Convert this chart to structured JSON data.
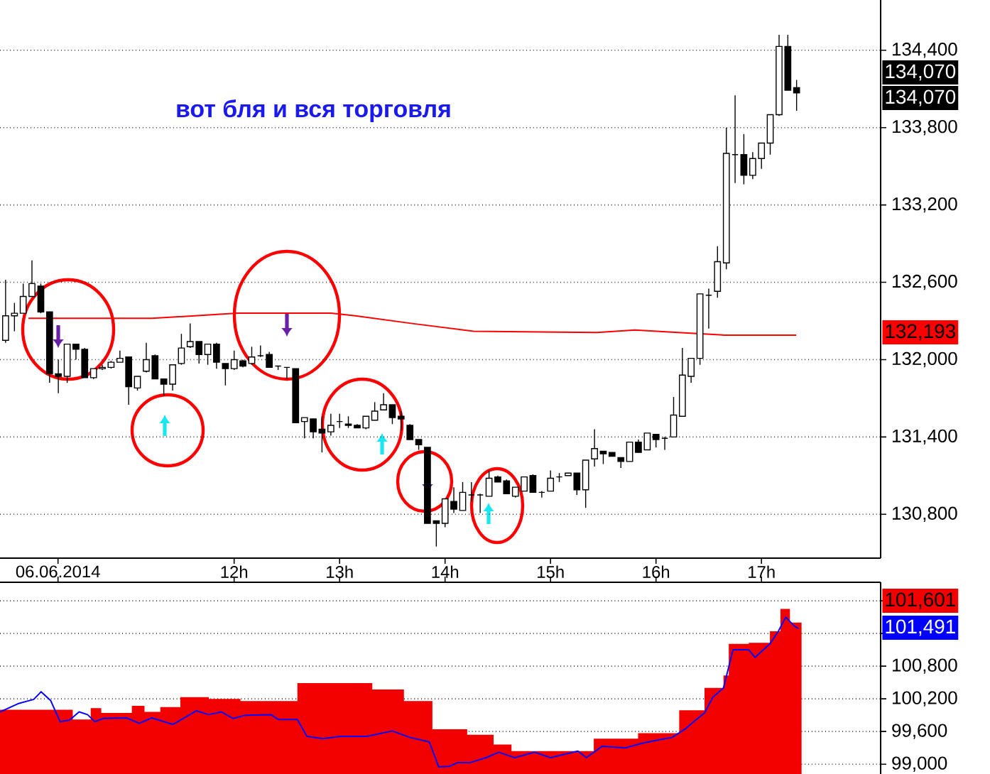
{
  "chart_data": [
    {
      "type": "candlestick",
      "x": [
        9.833,
        9.917,
        10,
        10.083,
        10.167,
        10.25,
        10.333,
        10.417,
        10.5,
        10.583,
        10.667,
        10.75,
        10.833,
        10.917,
        11,
        11.083,
        11.167,
        11.25,
        11.333,
        11.417,
        11.5,
        11.583,
        11.667,
        11.75,
        11.833,
        11.917,
        12,
        12.083,
        12.167,
        12.25,
        12.333,
        12.417,
        12.5,
        12.583,
        12.667,
        12.75,
        12.833,
        12.917,
        13,
        13.083,
        13.167,
        13.25,
        13.333,
        13.417,
        13.5,
        13.583,
        13.667,
        13.75,
        13.833,
        13.917,
        14,
        14.083,
        14.167,
        14.25,
        14.333,
        14.417,
        14.5,
        14.583,
        14.667,
        14.75,
        14.833,
        14.917,
        15,
        15.083,
        15.167,
        15.25,
        15.333,
        15.417,
        15.5,
        15.583,
        15.667,
        15.75,
        15.833,
        15.917,
        16,
        16.083,
        16.167,
        16.25,
        16.333,
        16.417,
        16.5,
        16.583,
        16.667,
        16.75,
        16.833,
        16.917,
        17,
        17.083,
        17.167,
        17.25,
        17.333
      ],
      "ohlc": [
        [
          132150,
          132620,
          132130,
          132340
        ],
        [
          132340,
          132440,
          132220,
          132360
        ],
        [
          132360,
          132590,
          132360,
          132490
        ],
        [
          132490,
          132770,
          132490,
          132590
        ],
        [
          132570,
          132590,
          132360,
          132370
        ],
        [
          132370,
          132370,
          131820,
          131890
        ],
        [
          131890,
          132000,
          131740,
          131870
        ],
        [
          131870,
          132120,
          131820,
          132120
        ],
        [
          132120,
          132120,
          132000,
          132080
        ],
        [
          132080,
          132090,
          131860,
          131860
        ],
        [
          131860,
          131930,
          131850,
          131930
        ],
        [
          131930,
          131960,
          131920,
          131940
        ],
        [
          131940,
          131990,
          131930,
          131980
        ],
        [
          131980,
          132070,
          131980,
          132010
        ],
        [
          132020,
          132020,
          131650,
          131790
        ],
        [
          131780,
          131870,
          131760,
          131870
        ],
        [
          131910,
          132130,
          131900,
          132000
        ],
        [
          132030,
          132040,
          131850,
          131850
        ],
        [
          131850,
          131850,
          131720,
          131810
        ],
        [
          131810,
          131960,
          131760,
          131960
        ],
        [
          131970,
          132200,
          131960,
          132090
        ],
        [
          132100,
          132280,
          132090,
          132140
        ],
        [
          132140,
          132140,
          131970,
          132040
        ],
        [
          132040,
          132120,
          131960,
          132120
        ],
        [
          132120,
          132130,
          131930,
          131980
        ],
        [
          131970,
          131970,
          131800,
          131930
        ],
        [
          131930,
          132070,
          131920,
          132000
        ],
        [
          131990,
          132000,
          131940,
          131950
        ],
        [
          131970,
          132100,
          131960,
          132020
        ],
        [
          132030,
          132110,
          132020,
          132030
        ],
        [
          132040,
          132060,
          131940,
          131940
        ],
        [
          131950,
          131950,
          131920,
          131950
        ],
        [
          131940,
          131940,
          131850,
          131940
        ],
        [
          131930,
          131930,
          131510,
          131510
        ],
        [
          131520,
          131550,
          131390,
          131550
        ],
        [
          131540,
          131540,
          131390,
          131440
        ],
        [
          131460,
          131560,
          131280,
          131430
        ],
        [
          131440,
          131580,
          131410,
          131490
        ],
        [
          131520,
          131580,
          131470,
          131520
        ],
        [
          131500,
          131560,
          131470,
          131490
        ],
        [
          131490,
          131500,
          131470,
          131470
        ],
        [
          131470,
          131560,
          131460,
          131560
        ],
        [
          131530,
          131670,
          131530,
          131600
        ],
        [
          131610,
          131740,
          131610,
          131650
        ],
        [
          131650,
          131650,
          131500,
          131550
        ],
        [
          131560,
          131600,
          131450,
          131540
        ],
        [
          131490,
          131500,
          131380,
          131380
        ],
        [
          131380,
          131380,
          131300,
          131340
        ],
        [
          131320,
          131320,
          130730,
          130730
        ],
        [
          130750,
          130750,
          130550,
          130730
        ],
        [
          130730,
          130920,
          130700,
          130920
        ],
        [
          130900,
          131010,
          130810,
          130840
        ],
        [
          130830,
          131050,
          130830,
          130970
        ],
        [
          130950,
          131050,
          130900,
          130950
        ],
        [
          130950,
          130960,
          130810,
          130950
        ],
        [
          130940,
          131140,
          130940,
          131080
        ],
        [
          131090,
          131100,
          131050,
          131050
        ],
        [
          131060,
          131070,
          130960,
          130960
        ],
        [
          130940,
          131010,
          130930,
          131010
        ],
        [
          130980,
          131090,
          130980,
          131090
        ],
        [
          131100,
          131110,
          130970,
          130970
        ],
        [
          130970,
          130980,
          130930,
          130970
        ],
        [
          130980,
          131140,
          130980,
          131080
        ],
        [
          131090,
          131120,
          131050,
          131090
        ],
        [
          131100,
          131120,
          131100,
          131120
        ],
        [
          131120,
          131120,
          130950,
          130990
        ],
        [
          130990,
          131220,
          130850,
          131220
        ],
        [
          131230,
          131460,
          131170,
          131310
        ],
        [
          131290,
          131290,
          131190,
          131270
        ],
        [
          131280,
          131280,
          131250,
          131250
        ],
        [
          131240,
          131240,
          131160,
          131210
        ],
        [
          131210,
          131360,
          131210,
          131360
        ],
        [
          131360,
          131380,
          131280,
          131280
        ],
        [
          131300,
          131430,
          131300,
          131430
        ],
        [
          131420,
          131420,
          131320,
          131380
        ],
        [
          131390,
          131400,
          131300,
          131390
        ],
        [
          131400,
          131710,
          131400,
          131570
        ],
        [
          131560,
          132090,
          131560,
          131880
        ],
        [
          131870,
          132010,
          131820,
          132010
        ],
        [
          132010,
          132510,
          131960,
          132510
        ],
        [
          132500,
          132550,
          132240,
          132500
        ],
        [
          132530,
          132880,
          132480,
          132760
        ],
        [
          132750,
          133800,
          132700,
          133600
        ],
        [
          133590,
          134050,
          133370,
          133590
        ],
        [
          133590,
          133750,
          133360,
          133430
        ],
        [
          133430,
          133610,
          133400,
          133560
        ],
        [
          133560,
          133680,
          133480,
          133680
        ],
        [
          133680,
          133900,
          133590,
          133900
        ],
        [
          133900,
          134520,
          133890,
          134430
        ],
        [
          134430,
          134520,
          134090,
          134090
        ],
        [
          134110,
          134170,
          133930,
          134070
        ]
      ],
      "series": [
        {
          "type": "line",
          "color": "#ff0000",
          "x": [
            10.05,
            11.22,
            12.03,
            12.92,
            13.15,
            13.69,
            14.27,
            15.44,
            15.8,
            16.21,
            16.65,
            17.33
          ],
          "values": [
            132320,
            132320,
            132360,
            132360,
            132340,
            132280,
            132220,
            132210,
            132230,
            132210,
            132190,
            132190
          ]
        }
      ],
      "annotations": [
        "вот бля и вся торговля",
        "134,070",
        "134,070",
        "132,193"
      ],
      "xlim": [
        9.78,
        18.13
      ],
      "ylim": [
        130460,
        134790
      ],
      "xticks": [
        {
          "value": 10.33,
          "label": "06.06.2014"
        },
        {
          "value": 12,
          "label": "12h"
        },
        {
          "value": 13,
          "label": "13h"
        },
        {
          "value": 14,
          "label": "14h"
        },
        {
          "value": 15,
          "label": "15h"
        },
        {
          "value": 16,
          "label": "16h"
        },
        {
          "value": 17,
          "label": "17h"
        }
      ],
      "yticks": [
        {
          "value": 130800,
          "label": "130,800"
        },
        {
          "value": 131400,
          "label": "131,400"
        },
        {
          "value": 132000,
          "label": "132,000"
        },
        {
          "value": 132600,
          "label": "132,600"
        },
        {
          "value": 133200,
          "label": "133,200"
        },
        {
          "value": 133800,
          "label": "133,800"
        },
        {
          "value": 134400,
          "label": "134,400"
        }
      ],
      "grid": "y"
    },
    {
      "type": "area",
      "series": [
        {
          "color": "#f20000",
          "x": [
            9.78,
            10.47,
            10.64,
            10.74,
            11.03,
            11.15,
            11.3,
            11.49,
            11.76,
            12.06,
            12.6,
            13.31,
            13.61,
            13.88,
            14.21,
            14.46,
            14.63,
            15.41,
            15.83,
            16.22,
            16.46,
            16.64,
            16.69,
            16.88,
            17.08,
            17.18,
            17.27,
            17.38
          ],
          "values": [
            100000,
            99820,
            100030,
            99940,
            100070,
            99960,
            100050,
            100230,
            100200,
            100160,
            100490,
            100370,
            100160,
            99640,
            99540,
            99360,
            99240,
            99470,
            99570,
            99990,
            100400,
            100630,
            101210,
            101230,
            101440,
            101850,
            101600,
            101600
          ]
        },
        {
          "type": "line",
          "color": "#0000ff",
          "x": [
            9.78,
            9.95,
            10.1,
            10.17,
            10.26,
            10.35,
            10.44,
            10.53,
            10.61,
            10.68,
            10.76,
            10.98,
            11.1,
            11.22,
            11.42,
            11.64,
            11.76,
            11.88,
            11.99,
            12.11,
            12.35,
            12.42,
            12.6,
            12.69,
            12.84,
            13.01,
            13.26,
            13.5,
            13.67,
            13.85,
            13.94,
            14.04,
            14.12,
            14.24,
            14.39,
            14.51,
            14.66,
            14.85,
            15,
            15.26,
            15.34,
            15.49,
            15.71,
            15.86,
            16.03,
            16.15,
            16.28,
            16.37,
            16.46,
            16.54,
            16.64,
            16.73,
            16.88,
            16.94,
            17.08,
            17.16,
            17.23,
            17.31,
            17.35
          ],
          "values": [
            99960,
            100110,
            100190,
            100330,
            100170,
            99780,
            99810,
            99960,
            99910,
            99780,
            99840,
            99850,
            99750,
            99850,
            99730,
            99980,
            99910,
            99960,
            99840,
            99900,
            99910,
            99820,
            99820,
            99510,
            99470,
            99510,
            99510,
            99610,
            99490,
            99410,
            98950,
            98960,
            99030,
            99030,
            99120,
            99220,
            99120,
            99220,
            99120,
            99240,
            99120,
            99330,
            99300,
            99380,
            99450,
            99490,
            99650,
            99800,
            99940,
            100230,
            100400,
            101100,
            101100,
            100960,
            101210,
            101440,
            101700,
            101540,
            101490
          ]
        }
      ],
      "annotations": [
        "101,601",
        "101,491"
      ],
      "xlim": [
        9.78,
        18.13
      ],
      "ylim": [
        98820,
        102340
      ],
      "xticks": [
        10.33,
        12,
        13,
        14,
        15,
        16,
        17
      ],
      "yticks": [
        {
          "value": 99000,
          "label": "99,000"
        },
        {
          "value": 99600,
          "label": "99,600"
        },
        {
          "value": 100200,
          "label": "100,200"
        },
        {
          "value": 100800,
          "label": "100,800"
        },
        {
          "value": 101400,
          "label": null
        },
        {
          "value": 102000,
          "label": null
        }
      ],
      "tick_labels": "y",
      "grid": "y"
    }
  ]
}
